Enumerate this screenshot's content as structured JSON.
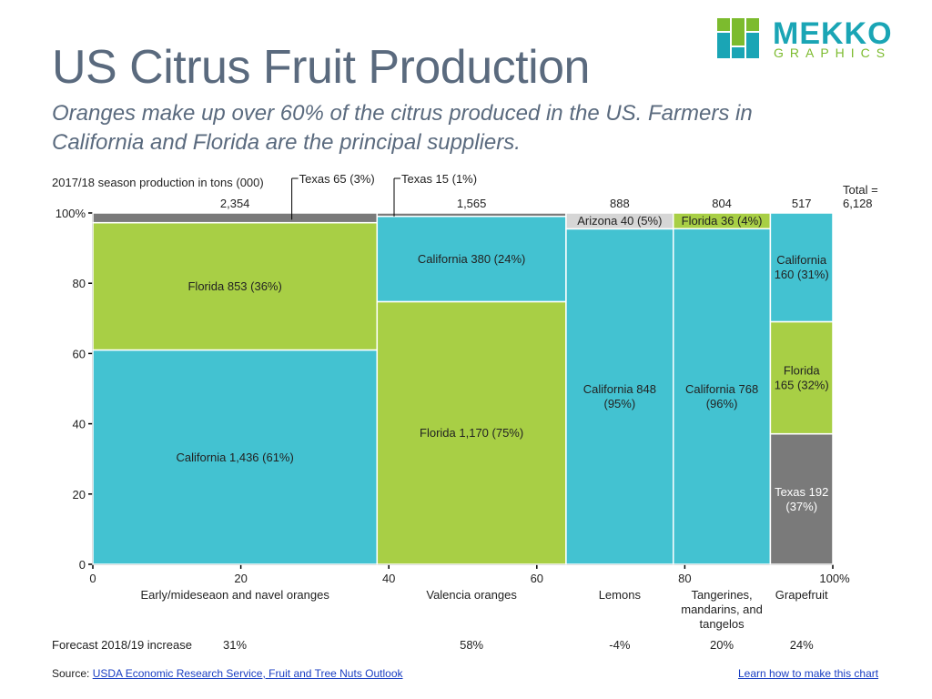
{
  "title": "US Citrus Fruit Production",
  "subtitle": "Oranges make up over 60% of the citrus produced in the US. Farmers in California and Florida are the principal suppliers.",
  "logo": {
    "word": "MEKKO",
    "sub": "GRAPHICS"
  },
  "colors": {
    "california": "#43c2d1",
    "florida": "#a8cf45",
    "texas": "#7a7a7a",
    "arizona": "#d6d6d6"
  },
  "header_label": "2017/18 season production in tons (000)",
  "total_label_line1": "Total =",
  "total_label_line2": "6,128",
  "forecast_label": "Forecast 2018/19 increase",
  "footer": {
    "source_prefix": "Source: ",
    "source_link": "USDA Economic Research Service, Fruit and Tree Nuts Outlook",
    "learn_link": "Learn how to make this chart"
  },
  "chart_data": {
    "type": "marimekko",
    "x_ticks": [
      "0",
      "20",
      "40",
      "60",
      "80",
      "100%"
    ],
    "y_ticks": [
      "0",
      "20",
      "40",
      "60",
      "80",
      "100%"
    ],
    "columns": [
      {
        "name": "Early/mideseaon and navel oranges",
        "label_lines": [
          "Early/mideseaon and navel oranges"
        ],
        "total": 2354,
        "total_label": "2,354",
        "forecast": "31%",
        "segments": [
          {
            "name": "California",
            "value": 1436,
            "label_lines": [
              "California 1,436 (61%)"
            ],
            "label_in": true
          },
          {
            "name": "Florida",
            "value": 853,
            "label_lines": [
              "Florida 853 (36%)"
            ],
            "label_in": true
          },
          {
            "name": "Texas",
            "value": 65,
            "label_lines": [
              "Texas 65 (3%)"
            ],
            "label_in": false
          }
        ]
      },
      {
        "name": "Valencia oranges",
        "label_lines": [
          "Valencia oranges"
        ],
        "total": 1565,
        "total_label": "1,565",
        "forecast": "58%",
        "segments": [
          {
            "name": "Florida",
            "value": 1170,
            "label_lines": [
              "Florida 1,170 (75%)"
            ],
            "label_in": true
          },
          {
            "name": "California",
            "value": 380,
            "label_lines": [
              "California 380 (24%)"
            ],
            "label_in": true
          },
          {
            "name": "Texas",
            "value": 15,
            "label_lines": [
              "Texas 15 (1%)"
            ],
            "label_in": false
          }
        ]
      },
      {
        "name": "Lemons",
        "label_lines": [
          "Lemons"
        ],
        "total": 888,
        "total_label": "888",
        "forecast": "-4%",
        "segments": [
          {
            "name": "California",
            "value": 848,
            "label_lines": [
              "California 848",
              "(95%)"
            ],
            "label_in": true
          },
          {
            "name": "Arizona",
            "value": 40,
            "label_lines": [
              "Arizona 40 (5%)"
            ],
            "label_in": true
          }
        ]
      },
      {
        "name": "Tangerines, mandarins, and tangelos",
        "label_lines": [
          "Tangerines,",
          "mandarins, and",
          "tangelos"
        ],
        "total": 804,
        "total_label": "804",
        "forecast": "20%",
        "segments": [
          {
            "name": "California",
            "value": 768,
            "label_lines": [
              "California 768",
              "(96%)"
            ],
            "label_in": true
          },
          {
            "name": "Florida",
            "value": 36,
            "label_lines": [
              "Florida 36 (4%)"
            ],
            "label_in": true
          }
        ]
      },
      {
        "name": "Grapefruit",
        "label_lines": [
          "Grapefruit"
        ],
        "total": 517,
        "total_label": "517",
        "forecast": "24%",
        "segments": [
          {
            "name": "Texas",
            "value": 192,
            "label_lines": [
              "Texas 192",
              "(37%)"
            ],
            "label_in": true
          },
          {
            "name": "Florida",
            "value": 165,
            "label_lines": [
              "Florida",
              "165 (32%)"
            ],
            "label_in": true
          },
          {
            "name": "California",
            "value": 160,
            "label_lines": [
              "California",
              "160 (31%)"
            ],
            "label_in": true
          }
        ]
      }
    ]
  }
}
